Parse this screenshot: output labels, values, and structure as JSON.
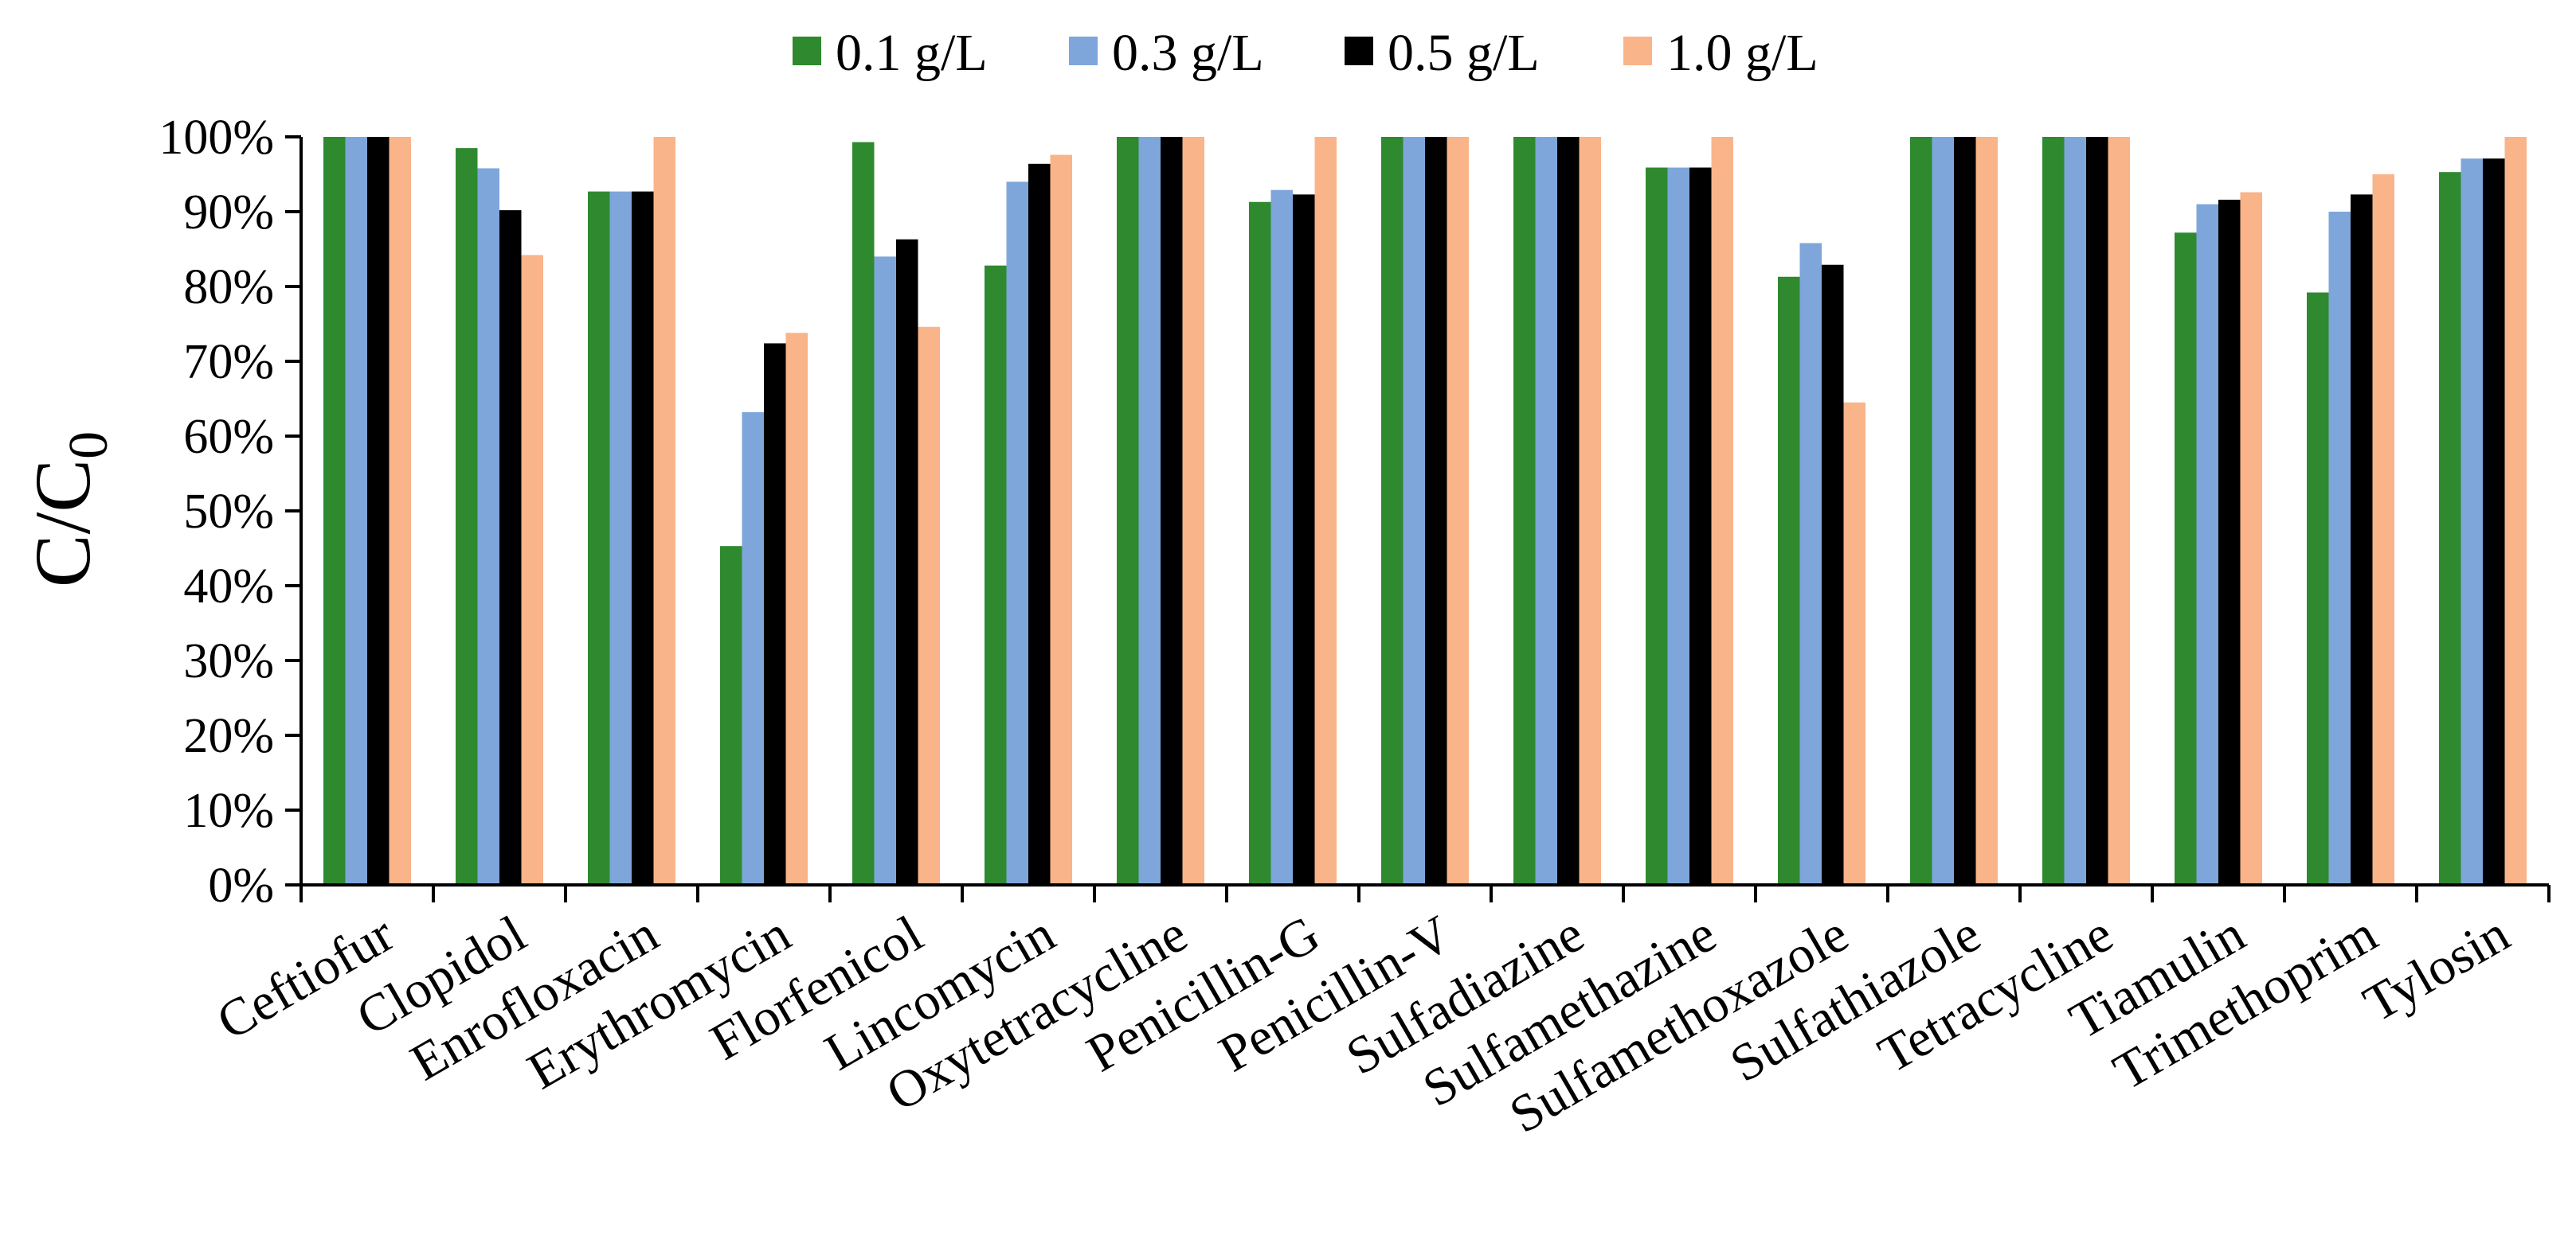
{
  "chart_data": {
    "type": "bar",
    "title": "",
    "xlabel": "",
    "ylabel_main": "C/C",
    "ylabel_sub": "0",
    "ylim": [
      0,
      100
    ],
    "ytick_values": [
      0,
      10,
      20,
      30,
      40,
      50,
      60,
      70,
      80,
      90,
      100
    ],
    "ytick_labels": [
      "0%",
      "10%",
      "20%",
      "30%",
      "40%",
      "50%",
      "60%",
      "70%",
      "80%",
      "90%",
      "100%"
    ],
    "grid": false,
    "legend_position": "top",
    "categories": [
      "Ceftiofur",
      "Clopidol",
      "Enrofloxacin",
      "Erythromycin",
      "Florfenicol",
      "Lincomycin",
      "Oxytetracycline",
      "Penicillin-G",
      "Penicillin-V",
      "Sulfadiazine",
      "Sulfamethazine",
      "Sulfamethoxazole",
      "Sulfathiazole",
      "Tetracycline",
      "Tiamulin",
      "Trimethoprim",
      "Tylosin"
    ],
    "series": [
      {
        "name": "0.1 g/L",
        "color": "#2f8a2f",
        "values": [
          100,
          98.5,
          92.7,
          45.3,
          99.3,
          82.8,
          100,
          91.3,
          100,
          100,
          95.9,
          81.3,
          100,
          100,
          87.2,
          79.2,
          95.3
        ]
      },
      {
        "name": "0.3 g/L",
        "color": "#7ea6db",
        "values": [
          100,
          95.8,
          92.7,
          63.2,
          84,
          94,
          100,
          92.9,
          100,
          100,
          95.9,
          85.8,
          100,
          100,
          91,
          90,
          97.1
        ]
      },
      {
        "name": "0.5 g/L",
        "color": "#000000",
        "values": [
          100,
          90.2,
          92.7,
          72.4,
          86.3,
          96.4,
          100,
          92.3,
          100,
          100,
          95.9,
          82.9,
          100,
          100,
          91.6,
          92.3,
          97.1
        ]
      },
      {
        "name": "1.0 g/L",
        "color": "#f9b48a",
        "values": [
          100,
          84.2,
          100,
          73.8,
          74.6,
          97.6,
          100,
          100,
          100,
          100,
          100,
          64.5,
          100,
          100,
          92.6,
          95,
          100
        ]
      }
    ]
  }
}
